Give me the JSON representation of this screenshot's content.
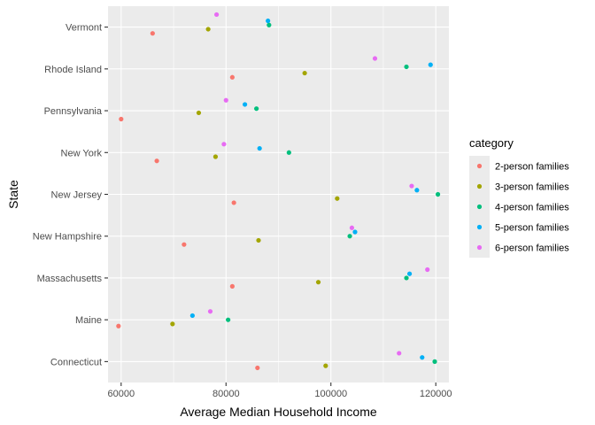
{
  "chart_data": {
    "type": "scatter",
    "xlabel": "Average Median Household Income",
    "ylabel": "State",
    "xlim": [
      57500,
      122500
    ],
    "x_ticks": [
      60000,
      80000,
      100000,
      120000
    ],
    "categories": [
      "Connecticut",
      "Maine",
      "Massachusetts",
      "New Hampshire",
      "New Jersey",
      "New York",
      "Pennsylvania",
      "Rhode Island",
      "Vermont"
    ],
    "legend_title": "category",
    "legend_position": "right",
    "grid": true,
    "series": [
      {
        "name": "2-person families",
        "color": "#F8766D",
        "points": [
          {
            "state": "Connecticut",
            "x": 86000,
            "offset": -0.15
          },
          {
            "state": "Maine",
            "x": 59500,
            "offset": -0.15
          },
          {
            "state": "Massachusetts",
            "x": 81200,
            "offset": -0.2
          },
          {
            "state": "New Hampshire",
            "x": 72000,
            "offset": -0.2
          },
          {
            "state": "New Jersey",
            "x": 81500,
            "offset": -0.2
          },
          {
            "state": "New York",
            "x": 66800,
            "offset": -0.2
          },
          {
            "state": "Pennsylvania",
            "x": 60000,
            "offset": -0.2
          },
          {
            "state": "Rhode Island",
            "x": 81200,
            "offset": -0.2
          },
          {
            "state": "Vermont",
            "x": 66000,
            "offset": -0.15
          }
        ]
      },
      {
        "name": "3-person families",
        "color": "#A3A500",
        "points": [
          {
            "state": "Connecticut",
            "x": 99000,
            "offset": -0.1
          },
          {
            "state": "Maine",
            "x": 69800,
            "offset": -0.1
          },
          {
            "state": "Massachusetts",
            "x": 97600,
            "offset": -0.1
          },
          {
            "state": "New Hampshire",
            "x": 86200,
            "offset": -0.1
          },
          {
            "state": "New Jersey",
            "x": 101200,
            "offset": -0.1
          },
          {
            "state": "New York",
            "x": 78000,
            "offset": -0.1
          },
          {
            "state": "Pennsylvania",
            "x": 74800,
            "offset": -0.05
          },
          {
            "state": "Rhode Island",
            "x": 95000,
            "offset": -0.1
          },
          {
            "state": "Vermont",
            "x": 76600,
            "offset": -0.05
          }
        ]
      },
      {
        "name": "4-person families",
        "color": "#00BF7D",
        "points": [
          {
            "state": "Connecticut",
            "x": 119800,
            "offset": 0
          },
          {
            "state": "Maine",
            "x": 80400,
            "offset": 0
          },
          {
            "state": "Massachusetts",
            "x": 114400,
            "offset": 0
          },
          {
            "state": "New Hampshire",
            "x": 103600,
            "offset": 0
          },
          {
            "state": "New Jersey",
            "x": 120400,
            "offset": 0
          },
          {
            "state": "New York",
            "x": 92000,
            "offset": 0
          },
          {
            "state": "Pennsylvania",
            "x": 85800,
            "offset": 0.05
          },
          {
            "state": "Rhode Island",
            "x": 114400,
            "offset": 0.05
          },
          {
            "state": "Vermont",
            "x": 88200,
            "offset": 0.05
          }
        ]
      },
      {
        "name": "5-person families",
        "color": "#00B0F6",
        "points": [
          {
            "state": "Connecticut",
            "x": 117400,
            "offset": 0.1
          },
          {
            "state": "Maine",
            "x": 73600,
            "offset": 0.1
          },
          {
            "state": "Massachusetts",
            "x": 115000,
            "offset": 0.1
          },
          {
            "state": "New Hampshire",
            "x": 104600,
            "offset": 0.1
          },
          {
            "state": "New Jersey",
            "x": 116400,
            "offset": 0.1
          },
          {
            "state": "New York",
            "x": 86400,
            "offset": 0.1
          },
          {
            "state": "Pennsylvania",
            "x": 83600,
            "offset": 0.15
          },
          {
            "state": "Rhode Island",
            "x": 119000,
            "offset": 0.1
          },
          {
            "state": "Vermont",
            "x": 88000,
            "offset": 0.15
          }
        ]
      },
      {
        "name": "6-person families",
        "color": "#E76BF3",
        "points": [
          {
            "state": "Connecticut",
            "x": 113000,
            "offset": 0.2
          },
          {
            "state": "Maine",
            "x": 77000,
            "offset": 0.2
          },
          {
            "state": "Massachusetts",
            "x": 118400,
            "offset": 0.2
          },
          {
            "state": "New Hampshire",
            "x": 104000,
            "offset": 0.2
          },
          {
            "state": "New Jersey",
            "x": 115400,
            "offset": 0.2
          },
          {
            "state": "New York",
            "x": 79600,
            "offset": 0.2
          },
          {
            "state": "Pennsylvania",
            "x": 80000,
            "offset": 0.25
          },
          {
            "state": "Rhode Island",
            "x": 108400,
            "offset": 0.25
          },
          {
            "state": "Vermont",
            "x": 78200,
            "offset": 0.3
          }
        ]
      }
    ]
  }
}
